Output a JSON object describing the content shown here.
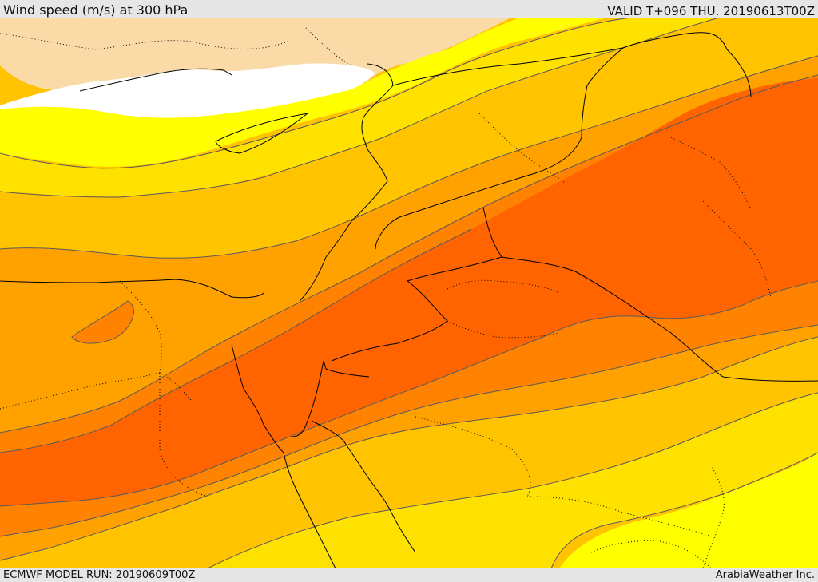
{
  "header": {
    "title": "Wind speed (m/s) at 300 hPa",
    "valid": "VALID T+096 THU. 20190613T00Z"
  },
  "footer": {
    "model_run": "ECMWF MODEL RUN: 20190609T00Z",
    "credit": "ArabiaWeather Inc."
  },
  "palette": {
    "land_unshaded": "#fadba8",
    "sea_unshaded": "#ffffff",
    "band_1": "#ffff00",
    "band_2": "#ffe100",
    "band_3": "#ffc300",
    "band_4": "#ffa200",
    "band_5": "#ff8200",
    "band_6": "#ff6400",
    "contour_line": "#5a5a5a",
    "border_line": "#000000"
  }
}
